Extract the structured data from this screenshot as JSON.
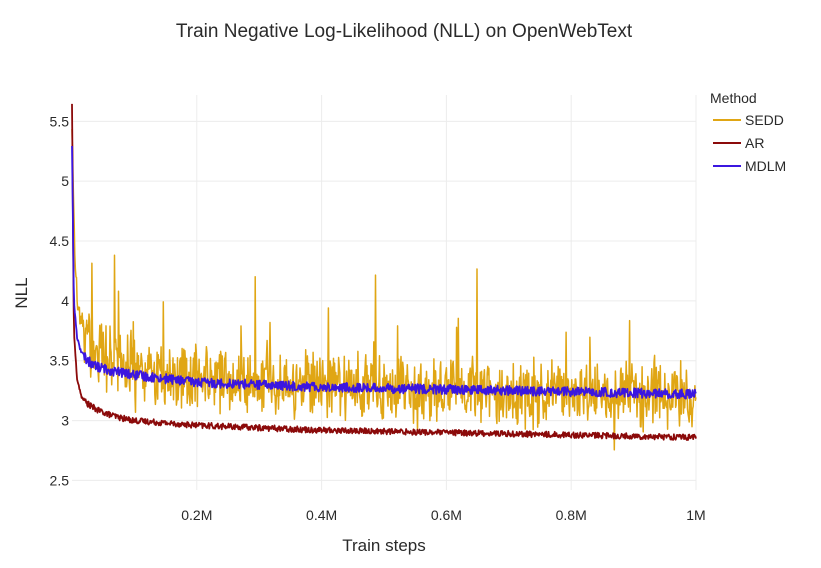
{
  "chart_data": {
    "type": "line",
    "title": "Train Negative Log-Likelihood (NLL) on OpenWebText",
    "xlabel": "Train steps",
    "ylabel": "NLL",
    "xlim": [
      0,
      1000000
    ],
    "ylim": [
      2.42,
      5.72
    ],
    "x_ticks": [
      {
        "value": 200000,
        "label": "0.2M"
      },
      {
        "value": 400000,
        "label": "0.4M"
      },
      {
        "value": 600000,
        "label": "0.6M"
      },
      {
        "value": 800000,
        "label": "0.8M"
      },
      {
        "value": 1000000,
        "label": "1M"
      }
    ],
    "y_ticks": [
      {
        "value": 2.5,
        "label": "2.5"
      },
      {
        "value": 3,
        "label": "3"
      },
      {
        "value": 3.5,
        "label": "3.5"
      },
      {
        "value": 4,
        "label": "4"
      },
      {
        "value": 4.5,
        "label": "4.5"
      },
      {
        "value": 5,
        "label": "5"
      },
      {
        "value": 5.5,
        "label": "5.5"
      }
    ],
    "grid": true,
    "legend": {
      "title": "Method",
      "position": "top-right"
    },
    "series": [
      {
        "name": "SEDD",
        "color": "#e0a614",
        "stroke_width": 1.5,
        "noise": 0.2,
        "x": [
          0,
          5000,
          10000,
          20000,
          30000,
          50000,
          75000,
          100000,
          150000,
          200000,
          300000,
          400000,
          500000,
          600000,
          700000,
          800000,
          900000,
          1000000
        ],
        "values": [
          5.4,
          4.3,
          3.95,
          3.75,
          3.65,
          3.55,
          3.48,
          3.43,
          3.38,
          3.36,
          3.32,
          3.29,
          3.27,
          3.25,
          3.24,
          3.23,
          3.22,
          3.21
        ]
      },
      {
        "name": "AR",
        "color": "#8b0a0a",
        "stroke_width": 1.8,
        "noise": 0.025,
        "x": [
          0,
          3000,
          8000,
          15000,
          25000,
          40000,
          60000,
          80000,
          100000,
          150000,
          200000,
          300000,
          400000,
          500000,
          600000,
          700000,
          800000,
          900000,
          1000000
        ],
        "values": [
          5.65,
          3.75,
          3.35,
          3.2,
          3.14,
          3.09,
          3.05,
          3.02,
          3.0,
          2.98,
          2.96,
          2.94,
          2.92,
          2.91,
          2.9,
          2.89,
          2.88,
          2.87,
          2.86
        ]
      },
      {
        "name": "MDLM",
        "color": "#3b16e0",
        "stroke_width": 1.8,
        "noise": 0.04,
        "x": [
          0,
          3000,
          8000,
          15000,
          25000,
          40000,
          60000,
          80000,
          100000,
          150000,
          200000,
          300000,
          400000,
          500000,
          600000,
          700000,
          800000,
          900000,
          1000000
        ],
        "values": [
          5.3,
          4.0,
          3.7,
          3.57,
          3.5,
          3.45,
          3.42,
          3.4,
          3.38,
          3.35,
          3.32,
          3.3,
          3.28,
          3.27,
          3.26,
          3.25,
          3.24,
          3.23,
          3.22
        ]
      }
    ]
  }
}
